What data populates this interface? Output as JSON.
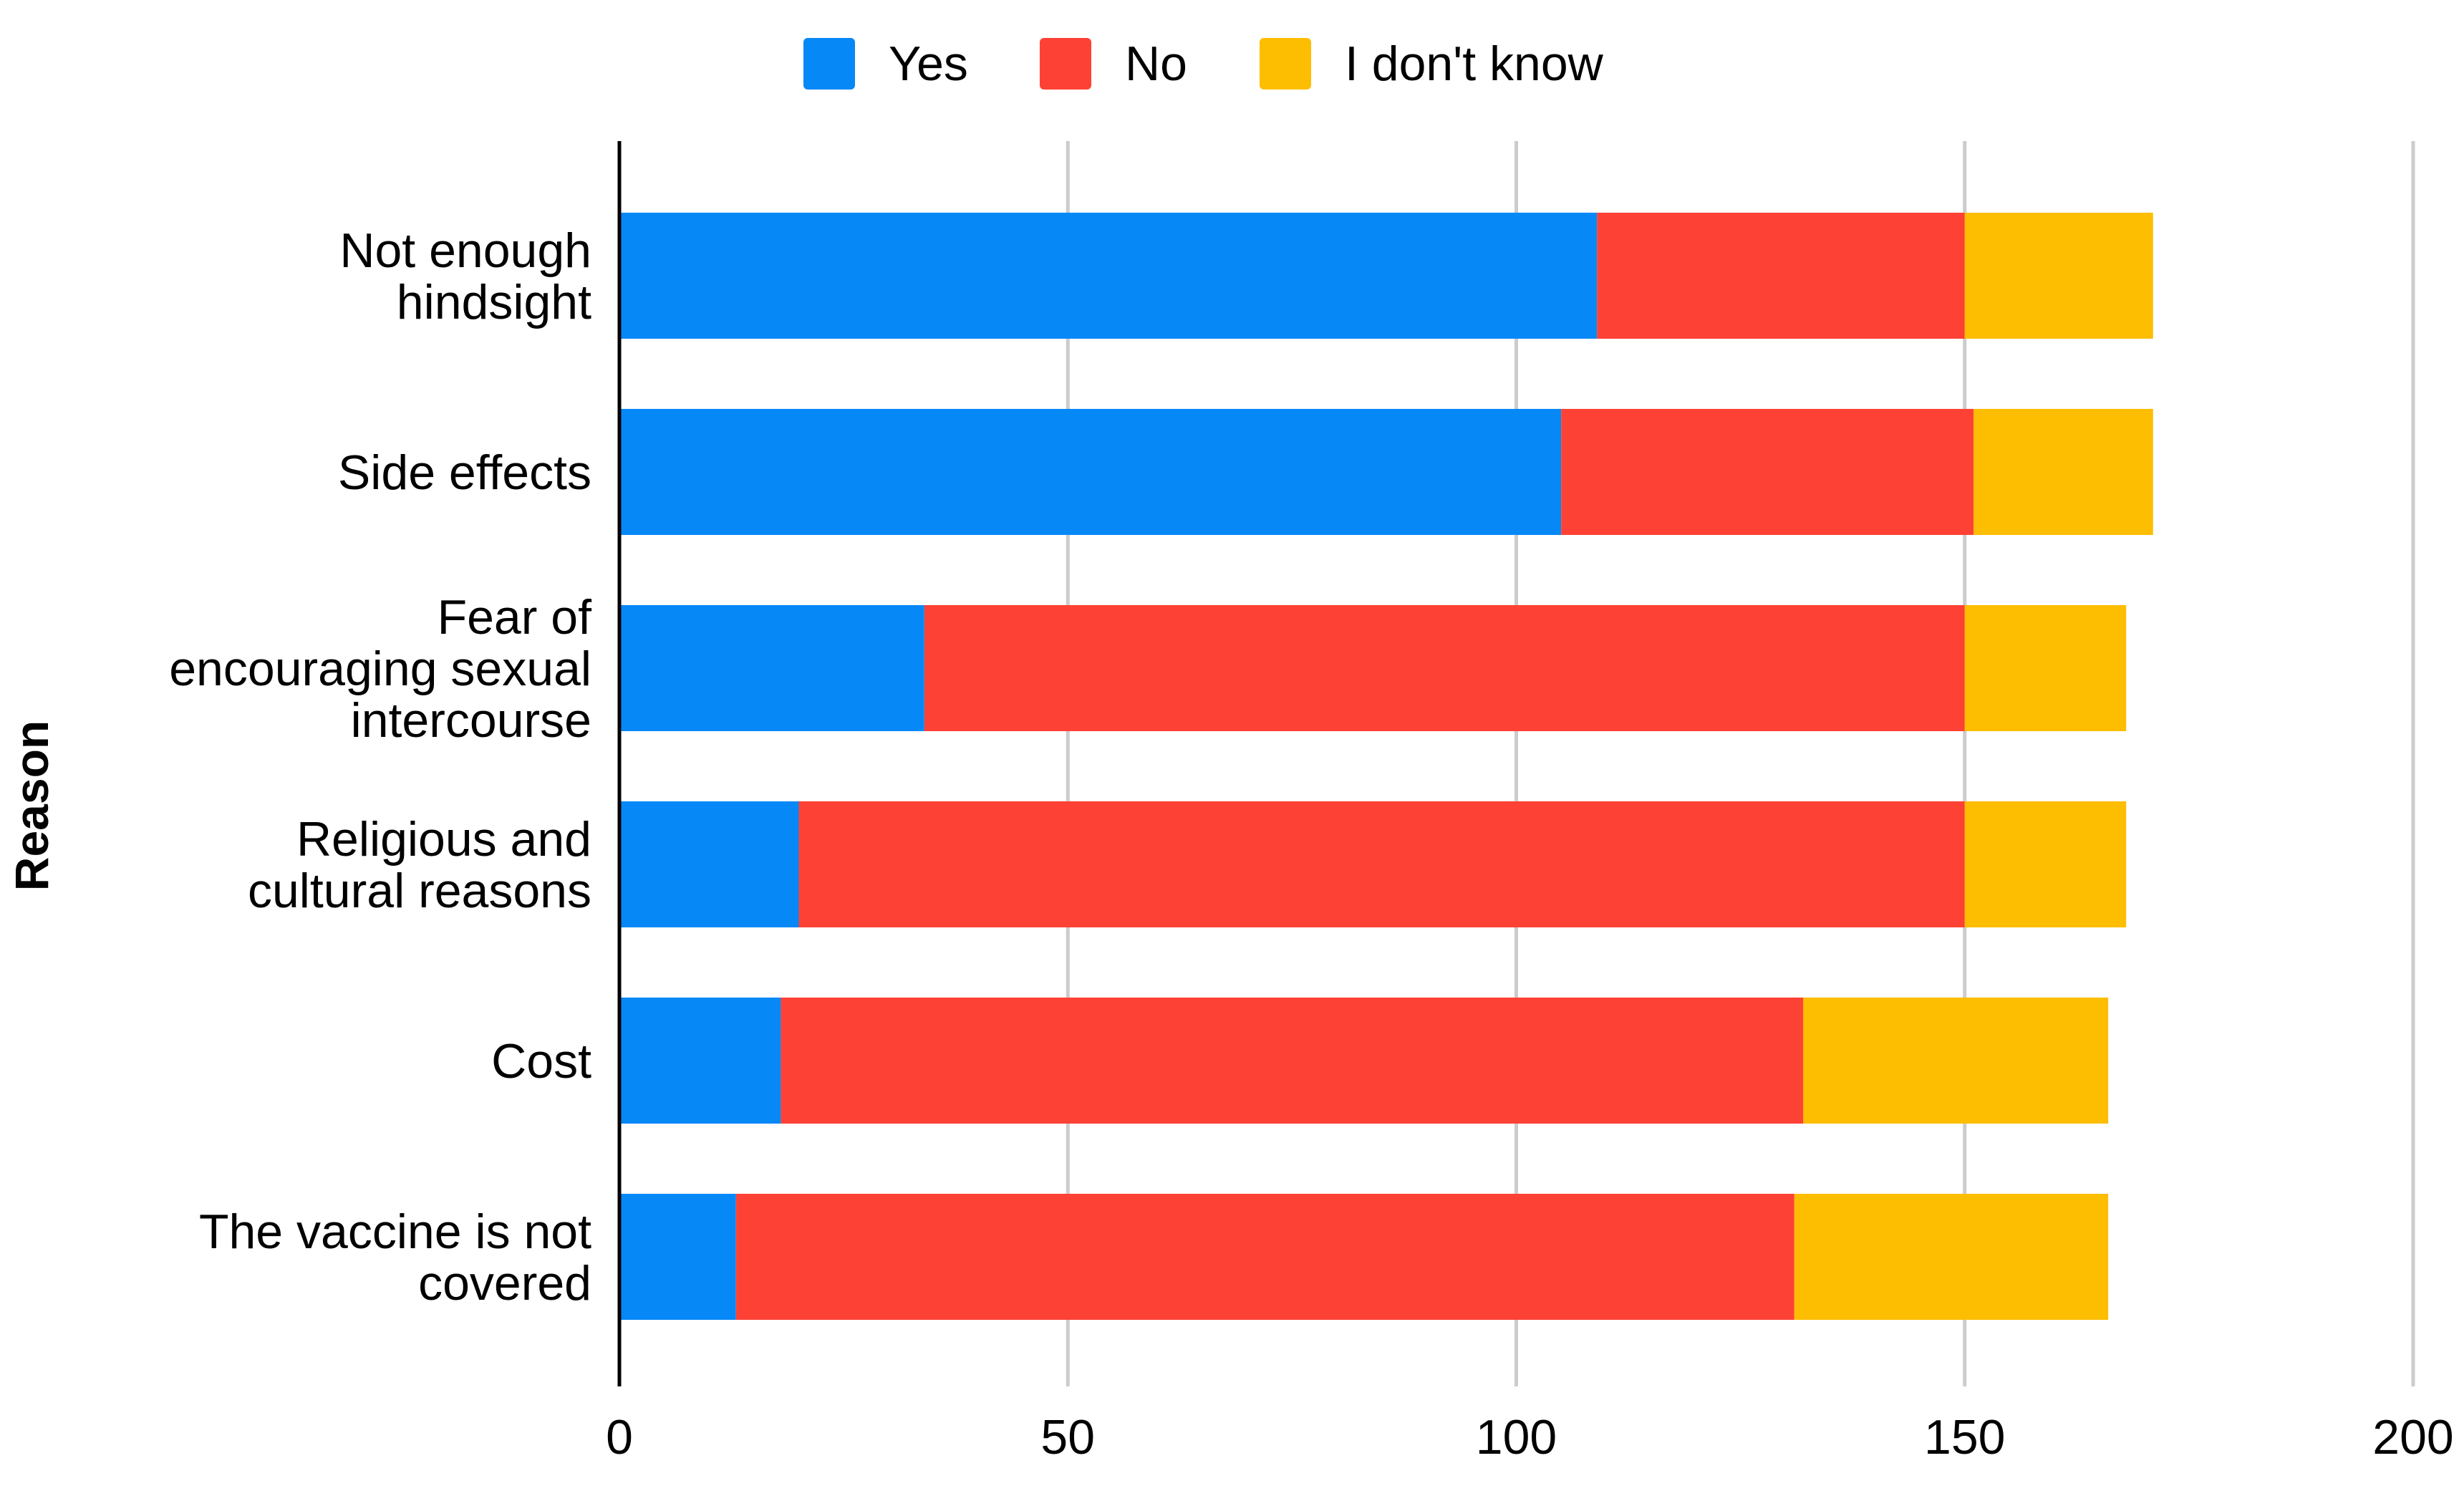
{
  "chart_data": {
    "type": "bar",
    "orientation": "horizontal",
    "stacked": true,
    "title": "",
    "xlabel": "",
    "ylabel": "Reason",
    "xlim": [
      0,
      200
    ],
    "xticks": [
      0,
      50,
      100,
      150,
      200
    ],
    "grid": true,
    "legend_position": "top",
    "categories": [
      [
        "Not enough",
        "hindsight"
      ],
      [
        "Side effects"
      ],
      [
        "Fear of",
        "encouraging sexual",
        "intercourse"
      ],
      [
        "Religious and",
        "cultural reasons"
      ],
      [
        "Cost"
      ],
      [
        "The vaccine is not",
        "covered"
      ]
    ],
    "series": [
      {
        "name": "Yes",
        "color": "#0788f7",
        "values": [
          109,
          105,
          34,
          20,
          18,
          13
        ]
      },
      {
        "name": "No",
        "color": "#fe4135",
        "values": [
          41,
          46,
          116,
          130,
          114,
          118
        ]
      },
      {
        "name": "I don't know",
        "color": "#fdbd00",
        "values": [
          21,
          20,
          18,
          18,
          34,
          35
        ]
      }
    ]
  }
}
